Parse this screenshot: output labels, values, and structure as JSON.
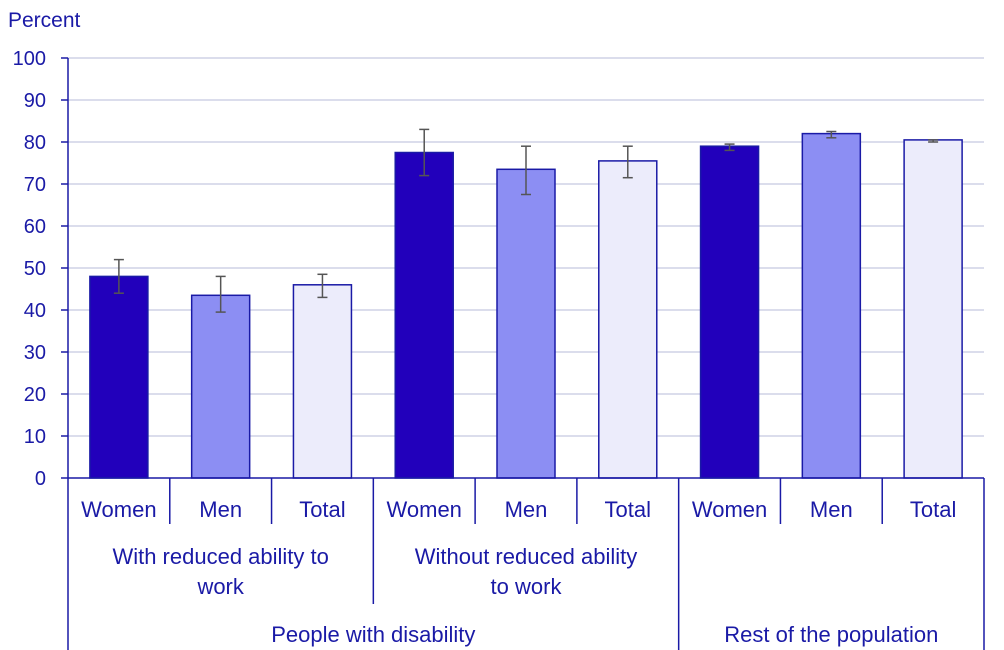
{
  "chart_data": {
    "type": "bar",
    "title": "",
    "ylabel": "Percent",
    "xlabel": "",
    "ylim": [
      0,
      100
    ],
    "yticks": [
      0,
      10,
      20,
      30,
      40,
      50,
      60,
      70,
      80,
      90,
      100
    ],
    "grid": true,
    "legend": "none",
    "categories": [
      "Women",
      "Men",
      "Total",
      "Women",
      "Men",
      "Total",
      "Women",
      "Men",
      "Total"
    ],
    "values": [
      48,
      43.5,
      46,
      77.5,
      73.5,
      75.5,
      79,
      82,
      80.5
    ],
    "errors": [
      [
        44,
        52
      ],
      [
        39.5,
        48
      ],
      [
        43,
        48.5
      ],
      [
        72,
        83
      ],
      [
        67.5,
        79
      ],
      [
        71.5,
        79
      ],
      [
        78,
        79.5
      ],
      [
        81,
        82.5
      ],
      [
        80,
        80.5
      ]
    ],
    "bar_colors": [
      "#2200bb",
      "#8c8ef3",
      "#ececfb",
      "#2200bb",
      "#8c8ef3",
      "#ececfb",
      "#2200bb",
      "#8c8ef3",
      "#ececfb"
    ],
    "groups_level1": [
      {
        "label": "With reduced ability to work",
        "span": 3
      },
      {
        "label": "Without reduced ability to work",
        "span": 3
      },
      {
        "label": "",
        "span": 3
      }
    ],
    "groups_level2": [
      {
        "label": "People with disability",
        "span": 6
      },
      {
        "label": "Rest of the population",
        "span": 3
      }
    ]
  },
  "colors": {
    "text": "#1a1aa6",
    "axis": "#1a1aa6",
    "grid": "#cfd2e6",
    "bar_stroke": "#1a1aa6",
    "error": "#555555"
  }
}
